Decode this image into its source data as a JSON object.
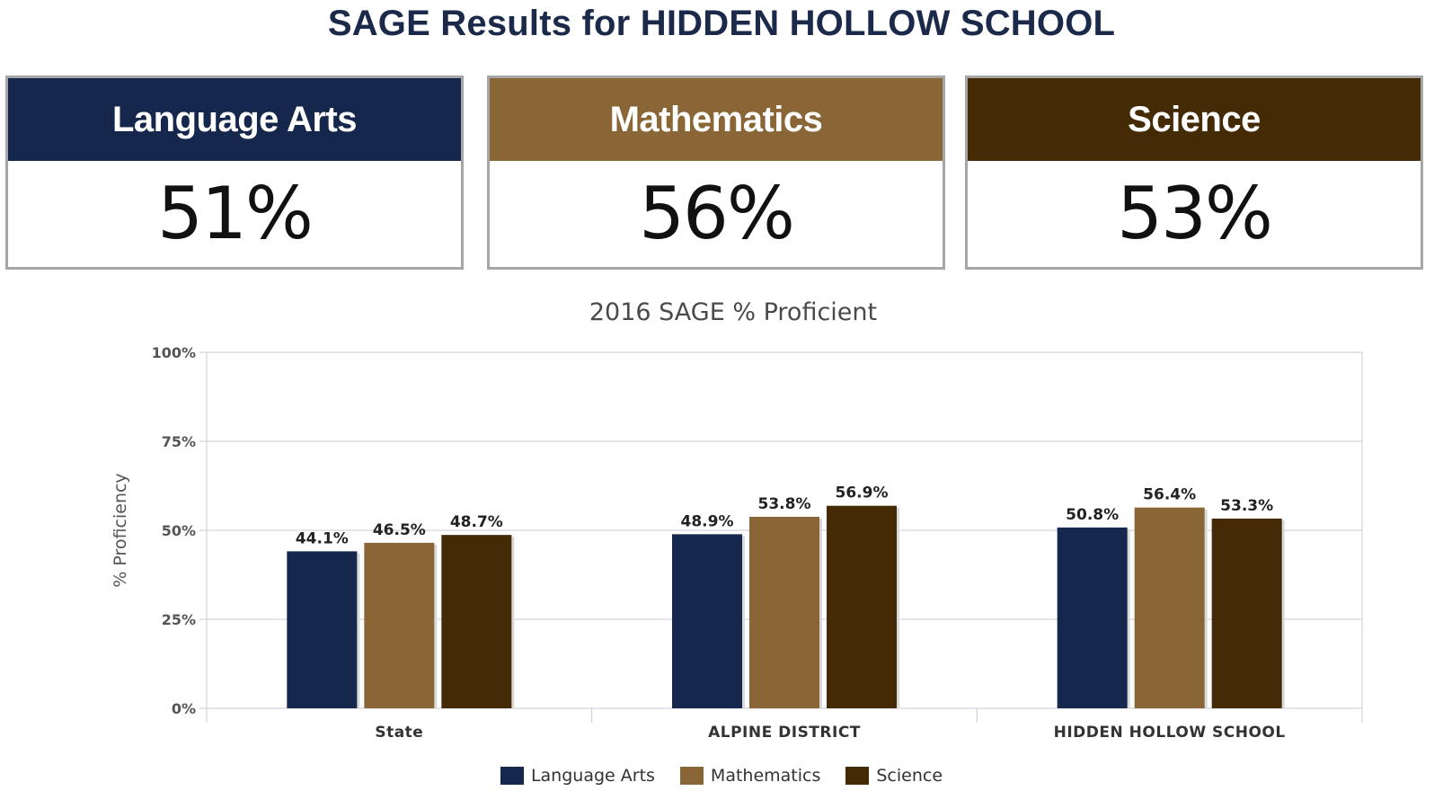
{
  "page_title": "SAGE Results for HIDDEN HOLLOW SCHOOL",
  "cards": [
    {
      "label": "Language Arts",
      "value": "51%",
      "color": "#15274d"
    },
    {
      "label": "Mathematics",
      "value": "56%",
      "color": "#8a6636"
    },
    {
      "label": "Science",
      "value": "53%",
      "color": "#452a06"
    }
  ],
  "chart_data": {
    "type": "bar",
    "title": "2016 SAGE % Proficient",
    "xlabel": "",
    "ylabel": "% Proficiency",
    "ylim": [
      0,
      100
    ],
    "yticks": [
      "0%",
      "25%",
      "50%",
      "75%",
      "100%"
    ],
    "grid": true,
    "legend_position": "bottom",
    "categories": [
      "State",
      "ALPINE DISTRICT",
      "HIDDEN HOLLOW SCHOOL"
    ],
    "series": [
      {
        "name": "Language Arts",
        "color": "#15274d",
        "values": [
          44.1,
          48.9,
          50.8
        ],
        "labels": [
          "44.1%",
          "48.9%",
          "50.8%"
        ]
      },
      {
        "name": "Mathematics",
        "color": "#8a6636",
        "values": [
          46.5,
          53.8,
          56.4
        ],
        "labels": [
          "46.5%",
          "53.8%",
          "56.4%"
        ]
      },
      {
        "name": "Science",
        "color": "#452a06",
        "values": [
          48.7,
          56.9,
          53.3
        ],
        "labels": [
          "48.7%",
          "56.9%",
          "53.3%"
        ]
      }
    ]
  }
}
